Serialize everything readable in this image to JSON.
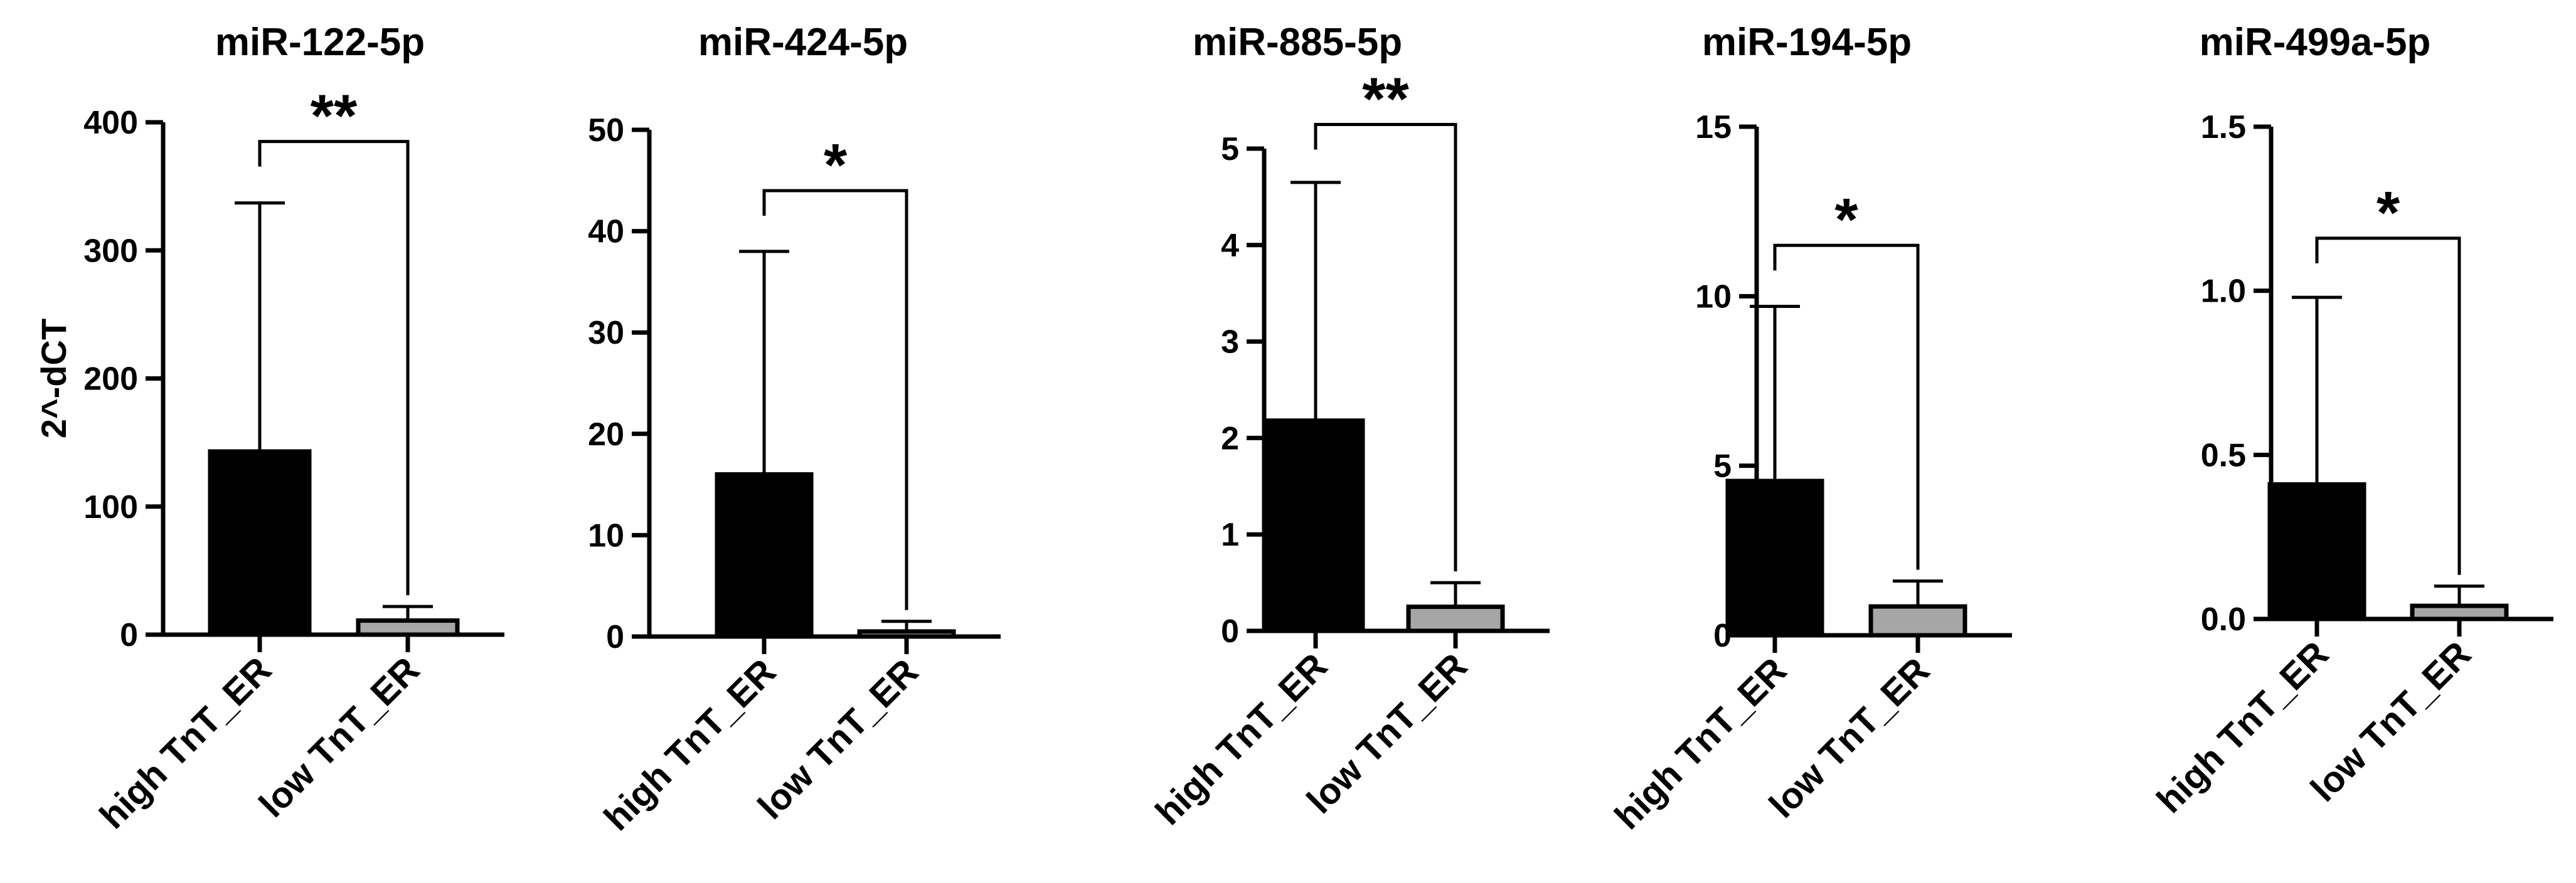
{
  "chart_data": [
    {
      "type": "bar",
      "title": "miR-122-5p",
      "ylabel": "2^-dCT",
      "categories": [
        "high TnT_ER",
        "low TnT_ER"
      ],
      "values": [
        143,
        11
      ],
      "error_upper": [
        337,
        22
      ],
      "bar_colors": [
        "#000000",
        "#a6a6a6"
      ],
      "ylim": [
        0,
        400
      ],
      "yticks": [
        0,
        100,
        200,
        300,
        400
      ],
      "ytick_labels": [
        "0",
        "100",
        "200",
        "300",
        "400"
      ],
      "significance": "**",
      "significance_bracket_y": 385
    },
    {
      "type": "bar",
      "title": "miR-424-5p",
      "ylabel": "",
      "categories": [
        "high TnT_ER",
        "low TnT_ER"
      ],
      "values": [
        16,
        0.5
      ],
      "error_upper": [
        38,
        1.5
      ],
      "bar_colors": [
        "#000000",
        "#a6a6a6"
      ],
      "ylim": [
        0,
        50
      ],
      "yticks": [
        0,
        10,
        20,
        30,
        40,
        50
      ],
      "ytick_labels": [
        "0",
        "10",
        "20",
        "30",
        "40",
        "50"
      ],
      "significance": "*",
      "significance_bracket_y": 44
    },
    {
      "type": "bar",
      "title": "miR-885-5p",
      "ylabel": "",
      "categories": [
        "high TnT_ER",
        "low TnT_ER"
      ],
      "values": [
        2.18,
        0.25
      ],
      "error_upper": [
        4.65,
        0.5
      ],
      "bar_colors": [
        "#000000",
        "#a6a6a6"
      ],
      "ylim": [
        0,
        5
      ],
      "yticks": [
        0,
        1,
        2,
        3,
        4,
        5
      ],
      "ytick_labels": [
        "0",
        "1",
        "2",
        "3",
        "4",
        "5"
      ],
      "significance": "**",
      "significance_bracket_y": 5.25
    },
    {
      "type": "bar",
      "title": "miR-194-5p",
      "ylabel": "",
      "categories": [
        "high TnT_ER",
        "low TnT_ER"
      ],
      "values": [
        4.55,
        0.85
      ],
      "error_upper": [
        9.7,
        1.6
      ],
      "bar_colors": [
        "#000000",
        "#a6a6a6"
      ],
      "ylim": [
        0,
        15
      ],
      "yticks": [
        0,
        5,
        10,
        15
      ],
      "ytick_labels": [
        "0",
        "5",
        "10",
        "15"
      ],
      "significance": "*",
      "significance_bracket_y": 11.5
    },
    {
      "type": "bar",
      "title": "miR-499a-5p",
      "ylabel": "",
      "categories": [
        "high TnT_ER",
        "low TnT_ER"
      ],
      "values": [
        0.41,
        0.04
      ],
      "error_upper": [
        0.98,
        0.1
      ],
      "bar_colors": [
        "#000000",
        "#a6a6a6"
      ],
      "ylim": [
        0,
        1.5
      ],
      "yticks": [
        0,
        0.5,
        1.0,
        1.5
      ],
      "ytick_labels": [
        "0.0",
        "0.5",
        "1.0",
        "1.5"
      ],
      "significance": "*",
      "significance_bracket_y": 1.16
    }
  ]
}
